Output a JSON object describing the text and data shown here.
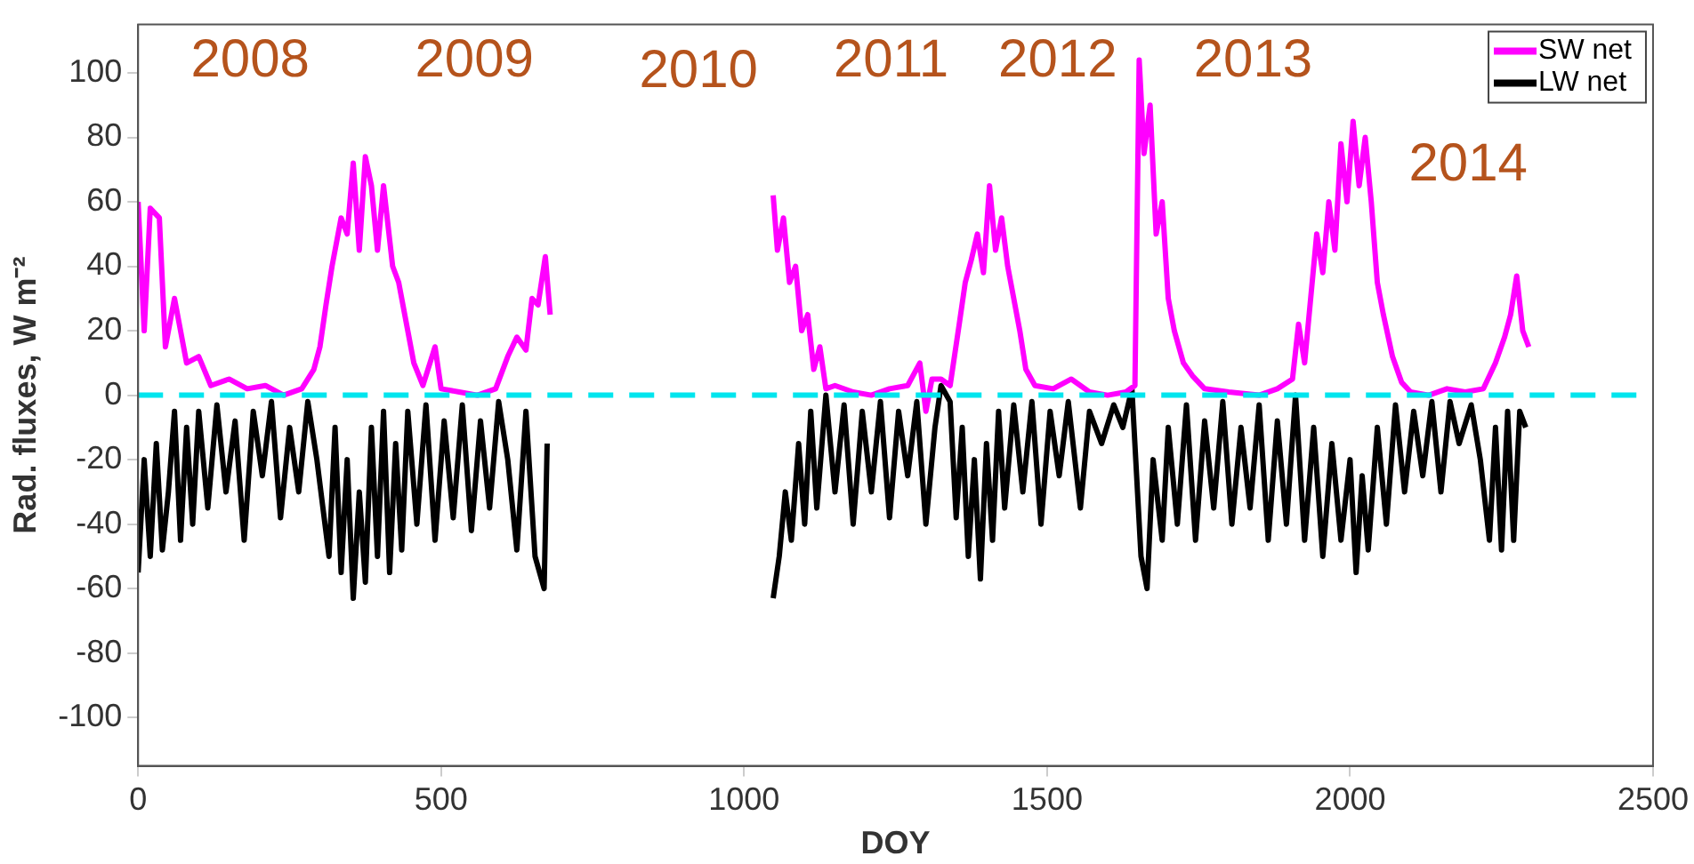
{
  "chart_data": {
    "type": "line",
    "xlabel": "DOY",
    "ylabel": "Rad. fluxes, W m⁻²",
    "xlim": [
      0,
      2500
    ],
    "xticks": [
      0,
      500,
      1000,
      1500,
      2000,
      2500
    ],
    "ylim": [
      -115,
      115
    ],
    "yticks": [
      -100,
      -80,
      -60,
      -40,
      -20,
      0,
      20,
      40,
      60,
      80,
      100
    ],
    "grid": false,
    "legend": "top right",
    "marker": "none",
    "line_style": "solid",
    "series": [
      {
        "name": "SW net",
        "color": "#ff00ff",
        "x": [
          0,
          10,
          20,
          35,
          45,
          60,
          80,
          100,
          120,
          150,
          180,
          210,
          240,
          270,
          290,
          300,
          310,
          320,
          335,
          345,
          355,
          365,
          375,
          385,
          395,
          405,
          420,
          430,
          445,
          455,
          470,
          490,
          500,
          530,
          560,
          590,
          610,
          625,
          640,
          650,
          660,
          672,
          680,
          860,
          1048,
          1055,
          1065,
          1075,
          1085,
          1095,
          1105,
          1115,
          1125,
          1135,
          1150,
          1180,
          1210,
          1240,
          1270,
          1290,
          1300,
          1310,
          1325,
          1340,
          1355,
          1365,
          1375,
          1385,
          1395,
          1405,
          1415,
          1425,
          1435,
          1445,
          1455,
          1465,
          1480,
          1510,
          1540,
          1570,
          1600,
          1630,
          1645,
          1652,
          1660,
          1670,
          1680,
          1690,
          1700,
          1710,
          1725,
          1740,
          1760,
          1800,
          1850,
          1880,
          1905,
          1915,
          1925,
          1935,
          1945,
          1955,
          1965,
          1975,
          1985,
          1995,
          2005,
          2015,
          2025,
          2035,
          2045,
          2055,
          2070,
          2085,
          2100,
          2130,
          2160,
          2190,
          2220,
          2240,
          2255,
          2265,
          2275,
          2285,
          2295
        ],
        "values": [
          60,
          20,
          58,
          55,
          15,
          30,
          10,
          12,
          3,
          5,
          2,
          3,
          0,
          2,
          8,
          15,
          28,
          40,
          55,
          50,
          72,
          45,
          74,
          65,
          45,
          65,
          40,
          35,
          20,
          10,
          3,
          15,
          2,
          1,
          0,
          2,
          12,
          18,
          14,
          30,
          28,
          43,
          25,
          null,
          62,
          45,
          55,
          35,
          40,
          20,
          25,
          8,
          15,
          2,
          3,
          1,
          0,
          2,
          3,
          10,
          -5,
          5,
          5,
          3,
          22,
          35,
          42,
          50,
          38,
          65,
          45,
          55,
          40,
          30,
          20,
          8,
          3,
          2,
          5,
          1,
          0,
          1,
          3,
          104,
          75,
          90,
          50,
          60,
          30,
          20,
          10,
          6,
          2,
          1,
          0,
          2,
          5,
          22,
          10,
          30,
          50,
          38,
          60,
          45,
          78,
          60,
          85,
          65,
          80,
          60,
          35,
          25,
          12,
          4,
          1,
          0,
          2,
          1,
          2,
          10,
          18,
          25,
          37,
          20,
          15
        ]
      },
      {
        "name": "LW net",
        "color": "#000000",
        "x": [
          0,
          10,
          20,
          30,
          40,
          50,
          60,
          70,
          80,
          90,
          100,
          115,
          130,
          145,
          160,
          175,
          190,
          205,
          220,
          235,
          250,
          265,
          280,
          295,
          305,
          315,
          325,
          335,
          345,
          355,
          365,
          375,
          385,
          395,
          405,
          415,
          425,
          435,
          445,
          460,
          475,
          490,
          505,
          520,
          535,
          550,
          565,
          580,
          595,
          610,
          625,
          640,
          655,
          670,
          675,
          860,
          1048,
          1058,
          1068,
          1078,
          1090,
          1100,
          1110,
          1120,
          1135,
          1150,
          1165,
          1180,
          1195,
          1210,
          1225,
          1240,
          1255,
          1270,
          1285,
          1300,
          1315,
          1325,
          1340,
          1350,
          1360,
          1370,
          1380,
          1390,
          1400,
          1410,
          1420,
          1430,
          1445,
          1460,
          1475,
          1490,
          1505,
          1520,
          1535,
          1555,
          1570,
          1590,
          1610,
          1625,
          1640,
          1655,
          1665,
          1675,
          1690,
          1700,
          1715,
          1730,
          1745,
          1760,
          1775,
          1790,
          1805,
          1820,
          1835,
          1850,
          1865,
          1880,
          1895,
          1910,
          1925,
          1940,
          1955,
          1970,
          1985,
          2000,
          2010,
          2020,
          2030,
          2045,
          2060,
          2075,
          2090,
          2105,
          2120,
          2135,
          2150,
          2165,
          2180,
          2200,
          2215,
          2230,
          2240,
          2250,
          2260,
          2270,
          2280,
          2290
        ],
        "values": [
          -55,
          -20,
          -50,
          -15,
          -48,
          -30,
          -5,
          -45,
          -10,
          -40,
          -5,
          -35,
          -3,
          -30,
          -8,
          -45,
          -5,
          -25,
          -2,
          -38,
          -10,
          -30,
          -2,
          -20,
          -35,
          -50,
          -10,
          -55,
          -20,
          -63,
          -30,
          -58,
          -10,
          -50,
          -5,
          -55,
          -15,
          -48,
          -5,
          -40,
          -3,
          -45,
          -8,
          -38,
          -3,
          -42,
          -8,
          -35,
          -2,
          -20,
          -48,
          -5,
          -50,
          -60,
          -15,
          null,
          -63,
          -50,
          -30,
          -45,
          -15,
          -40,
          -5,
          -35,
          0,
          -30,
          -3,
          -40,
          -5,
          -30,
          -2,
          -38,
          -5,
          -25,
          -2,
          -40,
          -10,
          3,
          -2,
          -38,
          -10,
          -50,
          -20,
          -57,
          -15,
          -45,
          -5,
          -35,
          -3,
          -30,
          -2,
          -40,
          -5,
          -25,
          -2,
          -35,
          -5,
          -15,
          -3,
          -10,
          2,
          -50,
          -60,
          -20,
          -45,
          -10,
          -40,
          -3,
          -45,
          -8,
          -35,
          -2,
          -40,
          -10,
          -35,
          -3,
          -45,
          -8,
          -40,
          0,
          -45,
          -10,
          -50,
          -15,
          -45,
          -20,
          -55,
          -25,
          -48,
          -10,
          -40,
          -3,
          -30,
          -5,
          -25,
          -2,
          -30,
          -2,
          -15,
          -3,
          -20,
          -45,
          -10,
          -48,
          -5,
          -45,
          -5,
          -10
        ]
      }
    ],
    "ref_lines": [
      {
        "axis": "y",
        "value": 0,
        "color": "#00e5ee",
        "line_style": "dashed"
      }
    ],
    "annotations": [
      "2008",
      "2009",
      "2010",
      "2011",
      "2012",
      "2013",
      "2014"
    ]
  }
}
